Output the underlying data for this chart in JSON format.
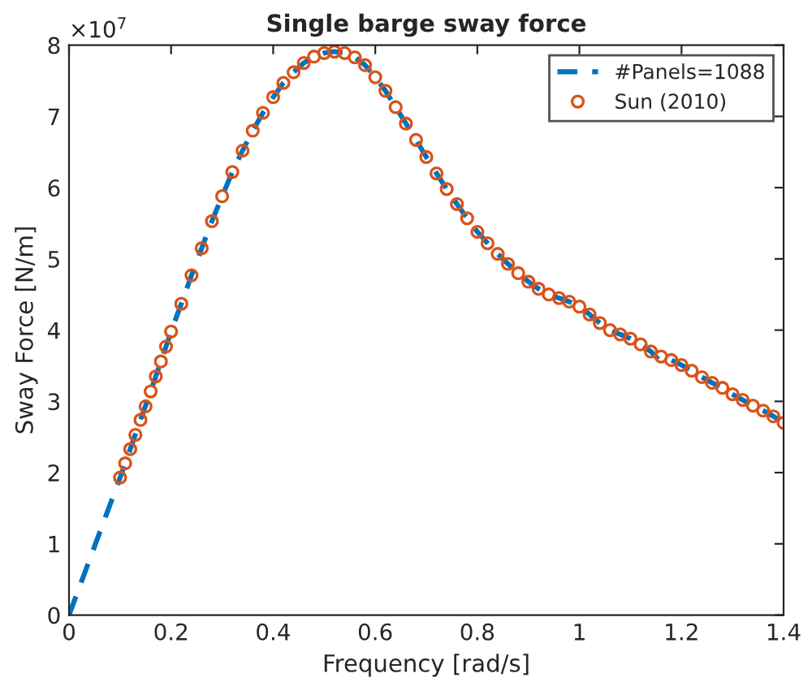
{
  "chart_data": {
    "type": "line",
    "title": "Single barge sway force",
    "xlabel": "Frequency [rad/s]",
    "ylabel": "Sway Force [N/m]",
    "annotations": [
      "×10$^{7}$"
    ],
    "xlim": [
      0,
      1.4
    ],
    "xticks": [
      0,
      0.2,
      0.4,
      0.6,
      0.8,
      1,
      1.2,
      1.4
    ],
    "ylim": [
      0,
      8
    ],
    "yticks": [
      0,
      1,
      2,
      3,
      4,
      5,
      6,
      7,
      8
    ],
    "legend": "top right",
    "grid": false,
    "series": [
      {
        "name": "#Panels=1088",
        "line_style": "dashed",
        "marker": "none",
        "color": "#0072bd",
        "x": [
          0,
          0.1,
          0.12,
          0.14,
          0.16,
          0.18,
          0.2,
          0.22,
          0.24,
          0.26,
          0.28,
          0.3,
          0.32,
          0.34,
          0.36,
          0.38,
          0.4,
          0.42,
          0.44,
          0.46,
          0.48,
          0.5,
          0.52,
          0.54,
          0.56,
          0.58,
          0.6,
          0.62,
          0.64,
          0.66,
          0.68,
          0.7,
          0.72,
          0.74,
          0.76,
          0.78,
          0.8,
          0.82,
          0.84,
          0.86,
          0.88,
          0.9,
          0.92,
          0.94,
          0.96,
          0.98,
          1,
          1.02,
          1.04,
          1.06,
          1.08,
          1.1,
          1.12,
          1.14,
          1.16,
          1.18,
          1.2,
          1.22,
          1.24,
          1.26,
          1.28,
          1.3,
          1.32,
          1.34,
          1.36,
          1.38,
          1.4
        ],
        "values": [
          0,
          1.93,
          2.33,
          2.74,
          3.14,
          3.56,
          3.98,
          4.37,
          4.77,
          5.15,
          5.53,
          5.88,
          6.22,
          6.52,
          6.8,
          7.05,
          7.27,
          7.47,
          7.62,
          7.75,
          7.84,
          7.89,
          7.91,
          7.89,
          7.83,
          7.72,
          7.55,
          7.36,
          7.13,
          6.9,
          6.67,
          6.43,
          6.2,
          5.98,
          5.77,
          5.57,
          5.38,
          5.22,
          5.07,
          4.93,
          4.8,
          4.68,
          4.58,
          4.5,
          4.45,
          4.4,
          4.33,
          4.22,
          4.1,
          4,
          3.94,
          3.88,
          3.8,
          3.7,
          3.55,
          3.58,
          3.51,
          3.43,
          3.34,
          3.26,
          3.19,
          3.1,
          3.02,
          2.94,
          2.87,
          2.79,
          2.7
        ]
      },
      {
        "name": "Sun (2010)",
        "type": "scatter",
        "marker": "circle",
        "color": "#d95319",
        "x": [
          0.1,
          0.11,
          0.12,
          0.13,
          0.14,
          0.15,
          0.16,
          0.17,
          0.18,
          0.19,
          0.2,
          0.22,
          0.24,
          0.26,
          0.28,
          0.3,
          0.32,
          0.34,
          0.36,
          0.38,
          0.4,
          0.42,
          0.44,
          0.46,
          0.48,
          0.5,
          0.52,
          0.54,
          0.56,
          0.58,
          0.6,
          0.62,
          0.64,
          0.66,
          0.68,
          0.7,
          0.72,
          0.74,
          0.76,
          0.78,
          0.8,
          0.82,
          0.84,
          0.86,
          0.88,
          0.9,
          0.92,
          0.94,
          0.96,
          0.98,
          1,
          1.02,
          1.04,
          1.06,
          1.08,
          1.1,
          1.12,
          1.14,
          1.16,
          1.18,
          1.2,
          1.22,
          1.24,
          1.26,
          1.28,
          1.3,
          1.32,
          1.34,
          1.36,
          1.38,
          1.4
        ],
        "values": [
          1.93,
          2.13,
          2.33,
          2.53,
          2.74,
          2.93,
          3.14,
          3.35,
          3.56,
          3.77,
          3.98,
          4.37,
          4.77,
          5.15,
          5.53,
          5.88,
          6.22,
          6.52,
          6.8,
          7.05,
          7.27,
          7.47,
          7.62,
          7.75,
          7.84,
          7.89,
          7.91,
          7.89,
          7.83,
          7.72,
          7.55,
          7.36,
          7.13,
          6.9,
          6.67,
          6.43,
          6.2,
          5.98,
          5.77,
          5.57,
          5.38,
          5.22,
          5.07,
          4.93,
          4.8,
          4.68,
          4.58,
          4.5,
          4.45,
          4.4,
          4.33,
          4.22,
          4.1,
          4,
          3.94,
          3.88,
          3.8,
          3.7,
          3.63,
          3.58,
          3.51,
          3.43,
          3.34,
          3.26,
          3.19,
          3.1,
          3.02,
          2.94,
          2.87,
          2.79,
          2.7
        ]
      }
    ]
  }
}
